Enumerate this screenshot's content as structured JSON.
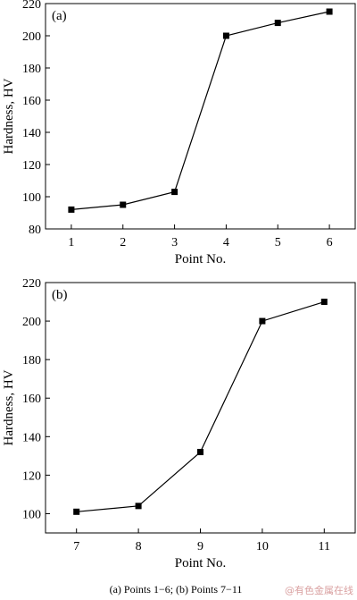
{
  "chart_data": [
    {
      "type": "line",
      "panel_label": "(a)",
      "x": [
        1,
        2,
        3,
        4,
        5,
        6
      ],
      "values": [
        92,
        95,
        103,
        200,
        208,
        215
      ],
      "xlabel": "Point No.",
      "ylabel": "Hardness, HV",
      "xlim": [
        0.5,
        6.5
      ],
      "ylim": [
        80,
        220
      ],
      "xticks": [
        1,
        2,
        3,
        4,
        5,
        6
      ],
      "yticks": [
        80,
        100,
        120,
        140,
        160,
        180,
        200,
        220
      ],
      "marker": "square",
      "grid": false
    },
    {
      "type": "line",
      "panel_label": "(b)",
      "x": [
        7,
        8,
        9,
        10,
        11
      ],
      "values": [
        101,
        104,
        132,
        200,
        210
      ],
      "xlabel": "Point No.",
      "ylabel": "Hardness, HV",
      "xlim": [
        6.5,
        11.5
      ],
      "ylim": [
        90,
        220
      ],
      "xticks": [
        7,
        8,
        9,
        10,
        11
      ],
      "yticks": [
        100,
        120,
        140,
        160,
        180,
        200,
        220
      ],
      "marker": "square",
      "grid": false
    }
  ],
  "caption": "(a) Points 1−6;  (b) Points 7−11",
  "watermark": "@有色金属在线",
  "colors": {
    "line": "#000000",
    "marker": "#000000"
  }
}
